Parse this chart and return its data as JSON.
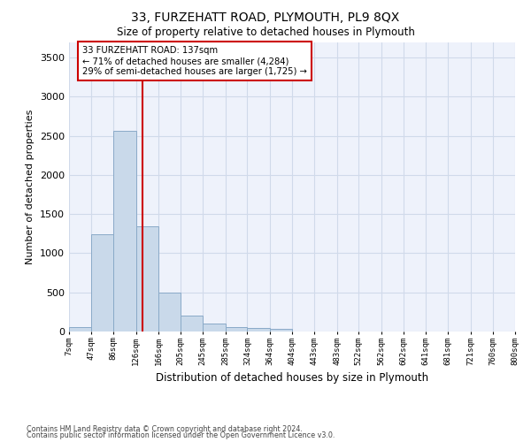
{
  "title": "33, FURZEHATT ROAD, PLYMOUTH, PL9 8QX",
  "subtitle": "Size of property relative to detached houses in Plymouth",
  "xlabel": "Distribution of detached houses by size in Plymouth",
  "ylabel": "Number of detached properties",
  "bar_color": "#c9d9ea",
  "bar_edge_color": "#8aaac8",
  "grid_color": "#d0daea",
  "background_color": "#eef2fb",
  "annotation_line1": "33 FURZEHATT ROAD: 137sqm",
  "annotation_line2": "← 71% of detached houses are smaller (4,284)",
  "annotation_line3": "29% of semi-detached houses are larger (1,725) →",
  "annotation_box_color": "#cc0000",
  "vline_x": 137,
  "vline_color": "#cc0000",
  "bin_edges": [
    7,
    47,
    86,
    126,
    166,
    205,
    245,
    285,
    324,
    364,
    404,
    443,
    483,
    522,
    562,
    602,
    641,
    681,
    721,
    760,
    800
  ],
  "bar_heights": [
    55,
    1245,
    2570,
    1350,
    500,
    200,
    105,
    55,
    50,
    30,
    0,
    0,
    0,
    0,
    0,
    0,
    0,
    0,
    0,
    0
  ],
  "ylim": [
    0,
    3700
  ],
  "yticks": [
    0,
    500,
    1000,
    1500,
    2000,
    2500,
    3000,
    3500
  ],
  "footer_line1": "Contains HM Land Registry data © Crown copyright and database right 2024.",
  "footer_line2": "Contains public sector information licensed under the Open Government Licence v3.0."
}
